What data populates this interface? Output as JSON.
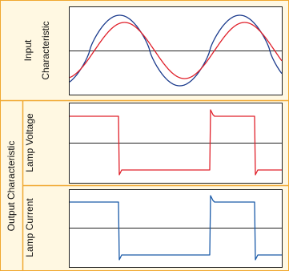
{
  "input_label": {
    "line1": "Input",
    "line2": "Characteristic"
  },
  "output_label": "Output Characteristic",
  "lamp_voltage_label": "Lamp Voltage",
  "lamp_current_label": "Lamp Current"
}
